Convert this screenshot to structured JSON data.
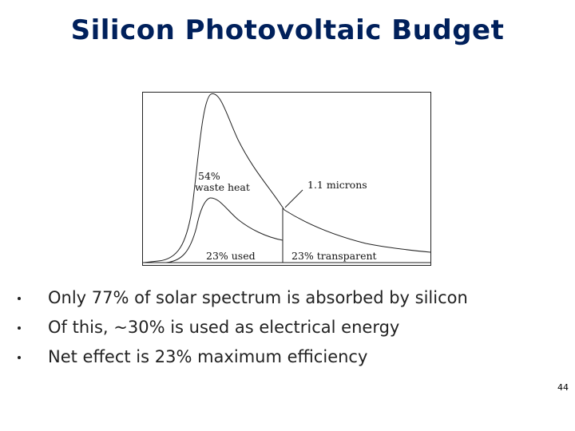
{
  "slide": {
    "title": "Silicon Photovoltaic Budget",
    "page_number": "44"
  },
  "figure": {
    "labels": {
      "waste_heat_percent": "54%",
      "waste_heat_text": "waste heat",
      "cutoff": "1.1 microns",
      "used": "23% used",
      "transparent": "23% transparent"
    }
  },
  "bullets": [
    "Only 77% of solar spectrum is absorbed by silicon",
    "Of this, ~30% is used as electrical energy",
    "Net effect is 23% maximum efficiency"
  ]
}
